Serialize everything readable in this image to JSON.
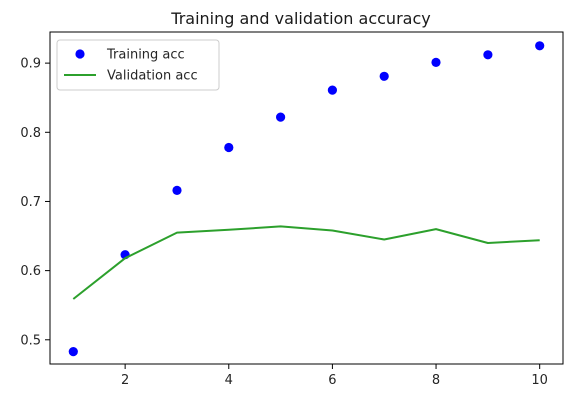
{
  "chart_data": {
    "type": "line",
    "title": "Training and validation accuracy",
    "xlabel": "",
    "ylabel": "",
    "xlim": [
      0.55,
      10.45
    ],
    "ylim": [
      0.465,
      0.945
    ],
    "x_ticks": [
      2,
      4,
      6,
      8,
      10
    ],
    "y_ticks": [
      0.5,
      0.6,
      0.7,
      0.8,
      0.9
    ],
    "x_tick_labels": [
      "2",
      "4",
      "6",
      "8",
      "10"
    ],
    "y_tick_labels": [
      "0.5",
      "0.6",
      "0.7",
      "0.8",
      "0.9"
    ],
    "grid": false,
    "legend_position": "top-left",
    "series": [
      {
        "name": "Training acc",
        "style": "markers",
        "color": "#0000ff",
        "x": [
          1,
          2,
          3,
          4,
          5,
          6,
          7,
          8,
          9,
          10
        ],
        "y": [
          0.483,
          0.623,
          0.716,
          0.778,
          0.822,
          0.861,
          0.881,
          0.901,
          0.912,
          0.925
        ]
      },
      {
        "name": "Validation acc",
        "style": "line",
        "color": "#2ca02c",
        "x": [
          1,
          2,
          3,
          4,
          5,
          6,
          7,
          8,
          9,
          10
        ],
        "y": [
          0.559,
          0.618,
          0.655,
          0.659,
          0.664,
          0.658,
          0.645,
          0.66,
          0.64,
          0.644
        ]
      }
    ]
  }
}
